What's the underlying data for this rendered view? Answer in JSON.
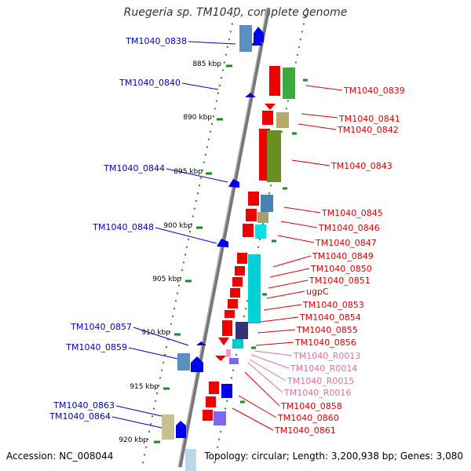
{
  "title": "Ruegeria sp. TM1040, complete genome",
  "footer": {
    "accession": "Accession: NC_008044",
    "topology": "Topology: circular; Length: 3,200,938 bp; Genes: 3,080"
  },
  "colors": {
    "forward_label": "#dd0000",
    "reverse_label": "#0000cc",
    "rna_label": "#e0709a",
    "backbone": "#888888",
    "tick": "#1a8a1a"
  },
  "scale_labels": [
    "885 kbp",
    "890 kbp",
    "895 kbp",
    "900 kbp",
    "905 kbp",
    "910 kbp",
    "915 kbp",
    "920 kbp"
  ],
  "reverse_genes": [
    "TM1040_0838",
    "TM1040_0840",
    "TM1040_0844",
    "TM1040_0848",
    "TM1040_0857",
    "TM1040_0859",
    "TM1040_0863",
    "TM1040_0864"
  ],
  "forward_genes": [
    "TM1040_0839",
    "TM1040_0841",
    "TM1040_0842",
    "TM1040_0843",
    "TM1040_0845",
    "TM1040_0846",
    "TM1040_0847",
    "TM1040_0849",
    "TM1040_0850",
    "TM1040_0851",
    "ugpC",
    "TM1040_0853",
    "TM1040_0854",
    "TM1040_0855",
    "TM1040_0856"
  ],
  "rna_genes": [
    "TM1040_R0013",
    "TM1040_R0014",
    "TM1040_R0015",
    "TM1040_R0016"
  ],
  "forward_genes_2": [
    "TM1040_0858",
    "TM1040_0860",
    "TM1040_0861"
  ]
}
